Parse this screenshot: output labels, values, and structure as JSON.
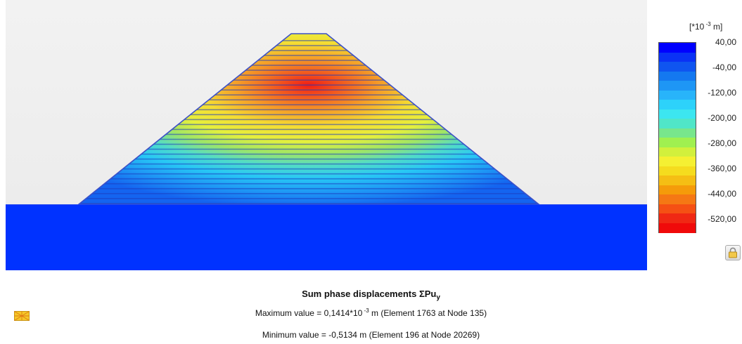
{
  "legend": {
    "unit_prefix": "[*10",
    "unit_exp": " -3",
    "unit_suffix": " m]",
    "ticks": [
      "40,00",
      "-40,00",
      "-120,00",
      "-200,00",
      "-280,00",
      "-360,00",
      "-440,00",
      "-520,00"
    ],
    "colors": [
      "#0000ff",
      "#0a32f5",
      "#0f55f0",
      "#1478f0",
      "#1e96f5",
      "#28b4fa",
      "#2dd2fa",
      "#3ce6f0",
      "#50e6c8",
      "#78e68c",
      "#a0f050",
      "#d2f03c",
      "#f5f032",
      "#f5dc1e",
      "#f5be14",
      "#f59b0a",
      "#f57814",
      "#f55014",
      "#f02814",
      "#f00a0a"
    ]
  },
  "footer": {
    "title_main": "Sum phase displacements ΣPu",
    "title_sub": "y",
    "max_prefix": "Maximum value = 0,1414*10",
    "max_exp": " -3",
    "max_suffix": " m (Element 1763 at Node 135)",
    "min_text": "Minimum value = -0,5134 m (Element 196 at Node 20269)"
  },
  "icons": {
    "lock": "lock-icon",
    "mesh": "mesh-icon"
  },
  "colors": {
    "foundation": "#0032ff",
    "background": "#f0f0f0",
    "outline": "#3c50c8"
  }
}
